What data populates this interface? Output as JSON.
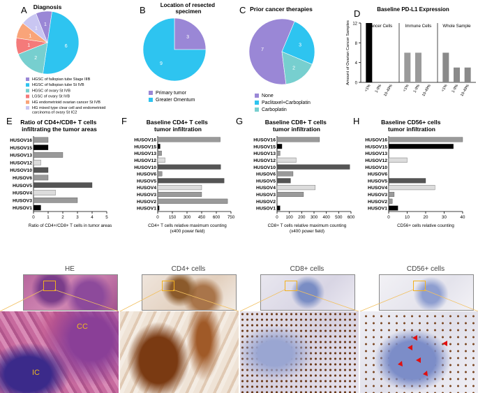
{
  "palette": {
    "pie_a": [
      "#9a87d6",
      "#2ec4f0",
      "#77cfcf",
      "#f47a7a",
      "#f9a479",
      "#c9c6f2"
    ],
    "pie_b": [
      "#9a87d6",
      "#2ec4f0"
    ],
    "pie_c": [
      "#9a87d6",
      "#2ec4f0",
      "#77cfcf"
    ],
    "hbar": {
      "dark": "#555555",
      "mid": "#9a9a9a",
      "light": "#dcdcdc",
      "black": "#000000"
    }
  },
  "panel_letters": [
    "A",
    "B",
    "C",
    "D",
    "E",
    "F",
    "G",
    "H",
    "I"
  ],
  "chart_data": [
    {
      "id": "A",
      "type": "pie",
      "title": "Diagnosis",
      "labels": [
        "HGSC of fallopian tube Stage IIIB",
        "HGSC of fallopian tube St IVB",
        "HGSC of ovary St IVB",
        "LGSC of ovary St IVB",
        "HG endometrioid ovarian cancer St IVB",
        "HG mixed type clear cell and endometrioid carcinoma of ovary St IC2"
      ],
      "values": [
        1,
        6,
        2,
        1,
        1,
        1
      ],
      "legend": "bottom"
    },
    {
      "id": "B",
      "type": "pie",
      "title": "Location of resected specimen",
      "labels": [
        "Primary tumor",
        "Greater Omentum"
      ],
      "values": [
        3,
        9
      ],
      "legend": "bottom"
    },
    {
      "id": "C",
      "type": "pie",
      "title": "Prior cancer therapies",
      "labels": [
        "None",
        "Paclitaxel+Carboplatin",
        "Carboplatin"
      ],
      "values": [
        7,
        3,
        2
      ],
      "legend": "bottom"
    },
    {
      "id": "D",
      "type": "bar",
      "title": "Baseline PD-L1 Expression",
      "ylabel": "Amount of Ovarian Cancer Samples",
      "ylim": [
        0,
        12
      ],
      "yticks": [
        0,
        4,
        8,
        12
      ],
      "groups": [
        {
          "name": "Cancer Cells",
          "categories": [
            "<1%",
            "1-9%",
            "10-49%"
          ],
          "values": [
            12,
            0,
            0
          ]
        },
        {
          "name": "Immune Cells",
          "categories": [
            "<1%",
            "1-9%",
            "10-49%"
          ],
          "values": [
            6,
            6,
            0
          ]
        },
        {
          "name": "Whole Sample",
          "categories": [
            "<1%",
            "1-9%",
            "10-49%"
          ],
          "values": [
            6,
            3,
            3
          ]
        }
      ]
    },
    {
      "id": "E",
      "type": "bar",
      "orientation": "horizontal",
      "title": "Ratio of CD4+/CD8+ T cells infiltrating the tumor areas",
      "xlabel": "Ratio of CD4+/CD8+ T cells in tumor areas",
      "xlim": [
        0,
        5
      ],
      "xticks": [
        0,
        1,
        2,
        3,
        4,
        5
      ],
      "categories": [
        "HUSOV16",
        "HUSOV15",
        "HUSOV13",
        "HUSOV12",
        "HUSOV10",
        "HUSOV6",
        "HUSOV5",
        "HUSOV4",
        "HUSOV3",
        "HUSOV1"
      ],
      "values": [
        1.0,
        1.0,
        2.0,
        0.5,
        1.0,
        1.0,
        4.0,
        1.5,
        3.0,
        0.5
      ],
      "shades": [
        "mid",
        "black",
        "mid",
        "light",
        "dark",
        "mid",
        "dark",
        "light",
        "mid",
        "black"
      ]
    },
    {
      "id": "F",
      "type": "bar",
      "orientation": "horizontal",
      "title": "Baseline CD4+ T cells tumor infiltration",
      "xlabel": "CD4+ T cells relative maximum counting (x400 power field)",
      "xlim": [
        0,
        750
      ],
      "xticks": [
        0,
        150,
        300,
        450,
        600,
        750
      ],
      "categories": [
        "HUSOV16",
        "HUSOV15",
        "HUSOV13",
        "HUSOV12",
        "HUSOV10",
        "HUSOV6",
        "HUSOV5",
        "HUSOV4",
        "HUSOV3",
        "HUSOV2",
        "HUSOV1"
      ],
      "values": [
        640,
        25,
        40,
        75,
        645,
        45,
        680,
        450,
        450,
        715,
        15
      ],
      "shades": [
        "mid",
        "black",
        "mid",
        "light",
        "dark",
        "mid",
        "dark",
        "light",
        "mid",
        "mid",
        "black"
      ]
    },
    {
      "id": "G",
      "type": "bar",
      "orientation": "horizontal",
      "title": "Baseline CD8+ T cells tumor infiltration",
      "xlabel": "CD8+ T cells relative maximum counting (x400 power field)",
      "xlim": [
        0,
        600
      ],
      "xticks": [
        0,
        100,
        200,
        300,
        400,
        500,
        600
      ],
      "categories": [
        "HUSOV16",
        "HUSOV15",
        "HUSOV13",
        "HUSOV12",
        "HUSOV10",
        "HUSOV6",
        "HUSOV5",
        "HUSOV4",
        "HUSOV3",
        "HUSOV2",
        "HUSOV1"
      ],
      "values": [
        345,
        40,
        25,
        155,
        590,
        130,
        110,
        310,
        215,
        0,
        25
      ],
      "shades": [
        "mid",
        "black",
        "mid",
        "light",
        "dark",
        "mid",
        "dark",
        "light",
        "mid",
        "mid",
        "black"
      ]
    },
    {
      "id": "H",
      "type": "bar",
      "orientation": "horizontal",
      "title": "Baseline CD56+ cells tumor infiltration",
      "xlabel": "CD56+ cells relative counting",
      "xlim": [
        0,
        40
      ],
      "xticks": [
        0,
        10,
        20,
        30,
        40
      ],
      "categories": [
        "HUSOV16",
        "HUSOV15",
        "HUSOV13",
        "HUSOV12",
        "HUSOV10",
        "HUSOV6",
        "HUSOV5",
        "HUSOV4",
        "HUSOV3",
        "HUSOV2",
        "HUSOV1"
      ],
      "values": [
        40,
        35,
        0,
        10,
        0,
        0,
        20,
        25,
        3,
        2,
        5
      ],
      "shades": [
        "mid",
        "black",
        "mid",
        "light",
        "dark",
        "mid",
        "dark",
        "light",
        "mid",
        "mid",
        "black"
      ]
    }
  ],
  "micrographs": {
    "titles": [
      "HE",
      "CD4+ cells",
      "CD8+ cells",
      "CD56+ cells"
    ],
    "annotations": [
      "CC",
      "IC"
    ]
  }
}
